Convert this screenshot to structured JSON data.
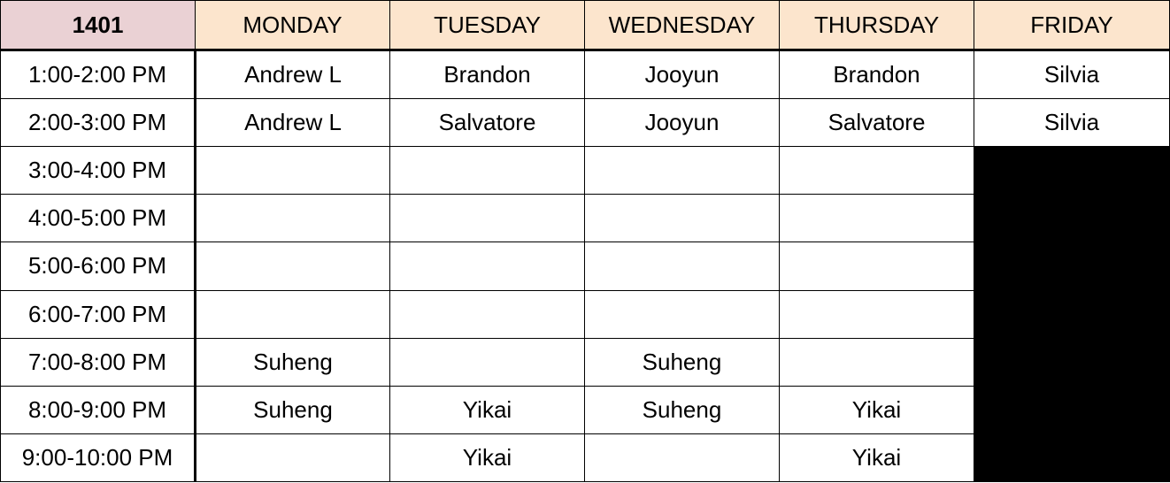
{
  "room": "1401",
  "days": [
    "MONDAY",
    "TUESDAY",
    "WEDNESDAY",
    "THURSDAY",
    "FRIDAY"
  ],
  "rows": [
    {
      "time": "1:00-2:00 PM",
      "cells": [
        "Andrew L",
        "Brandon",
        "Jooyun",
        "Brandon",
        "Silvia"
      ],
      "blocked": [
        false,
        false,
        false,
        false,
        false
      ]
    },
    {
      "time": "2:00-3:00 PM",
      "cells": [
        "Andrew L",
        "Salvatore",
        "Jooyun",
        "Salvatore",
        "Silvia"
      ],
      "blocked": [
        false,
        false,
        false,
        false,
        false
      ]
    },
    {
      "time": "3:00-4:00 PM",
      "cells": [
        "",
        "",
        "",
        "",
        ""
      ],
      "blocked": [
        false,
        false,
        false,
        false,
        true
      ]
    },
    {
      "time": "4:00-5:00 PM",
      "cells": [
        "",
        "",
        "",
        "",
        ""
      ],
      "blocked": [
        false,
        false,
        false,
        false,
        true
      ]
    },
    {
      "time": "5:00-6:00 PM",
      "cells": [
        "",
        "",
        "",
        "",
        ""
      ],
      "blocked": [
        false,
        false,
        false,
        false,
        true
      ]
    },
    {
      "time": "6:00-7:00 PM",
      "cells": [
        "",
        "",
        "",
        "",
        ""
      ],
      "blocked": [
        false,
        false,
        false,
        false,
        true
      ]
    },
    {
      "time": "7:00-8:00 PM",
      "cells": [
        "Suheng",
        "",
        "Suheng",
        "",
        ""
      ],
      "blocked": [
        false,
        false,
        false,
        false,
        true
      ]
    },
    {
      "time": "8:00-9:00 PM",
      "cells": [
        "Suheng",
        "Yikai",
        "Suheng",
        "Yikai",
        ""
      ],
      "blocked": [
        false,
        false,
        false,
        false,
        true
      ]
    },
    {
      "time": "9:00-10:00 PM",
      "cells": [
        "",
        "Yikai",
        "",
        "Yikai",
        ""
      ],
      "blocked": [
        false,
        false,
        false,
        false,
        true
      ]
    }
  ],
  "colors": {
    "corner_bg": "#ead1d4",
    "header_bg": "#fce5cd",
    "blocked_bg": "#000000",
    "grid_line": "#000000"
  }
}
